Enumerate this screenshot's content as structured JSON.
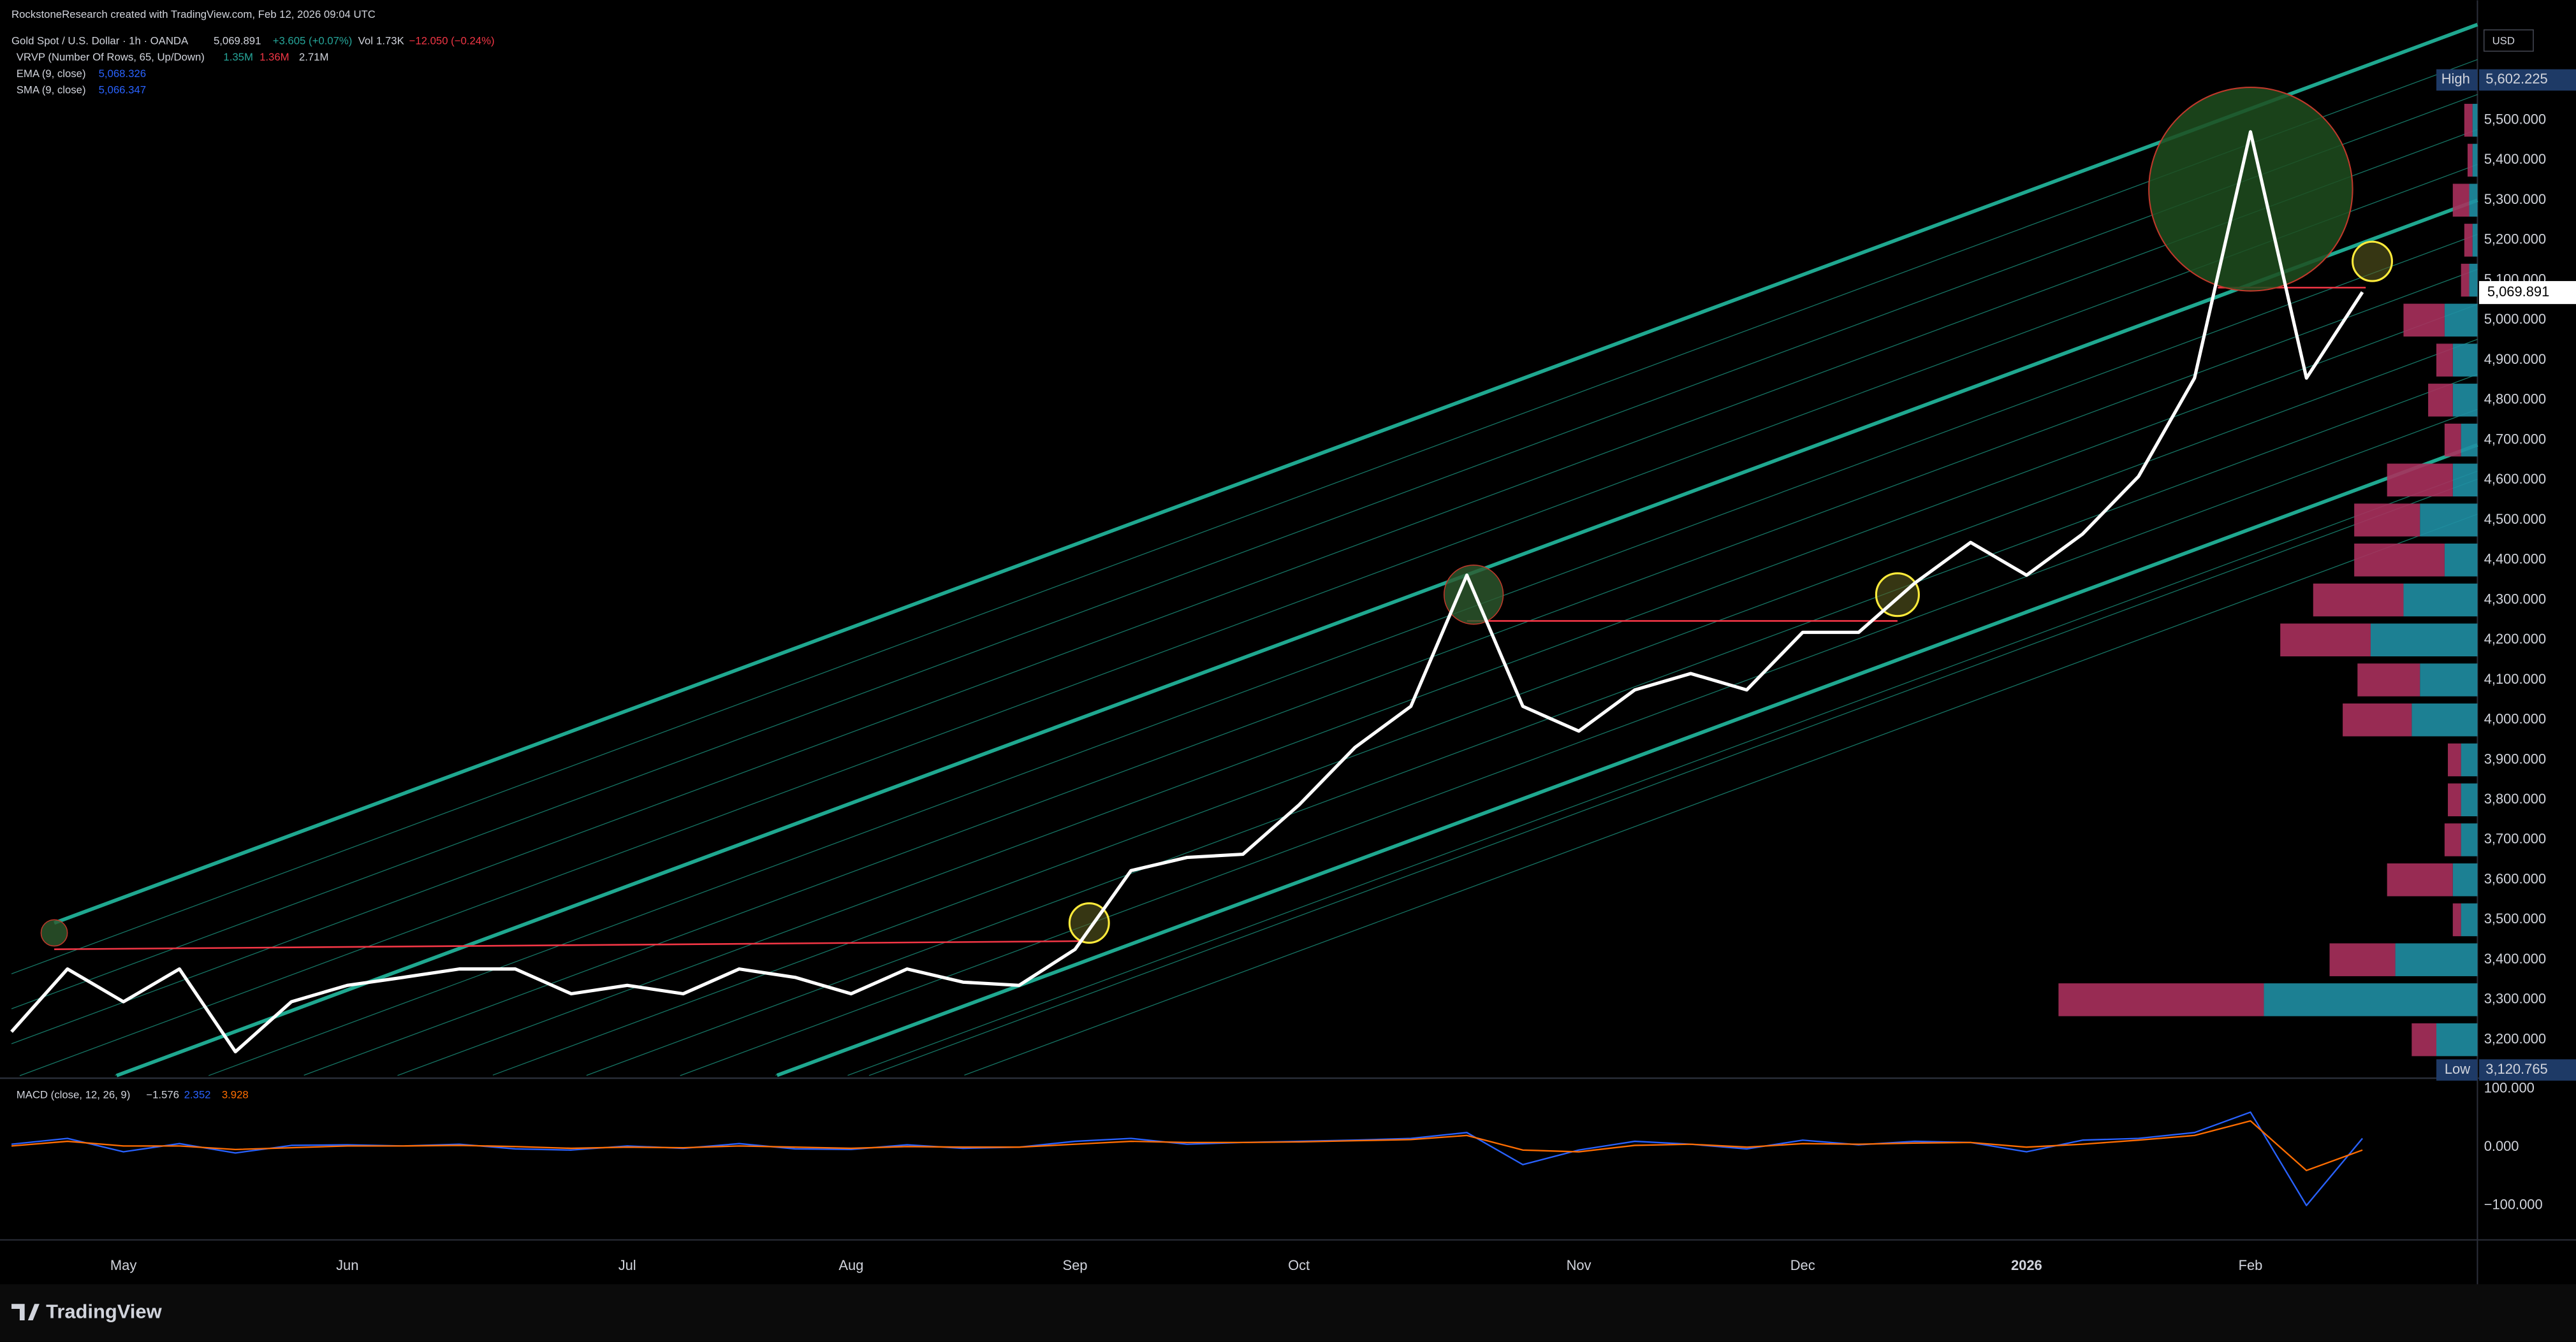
{
  "header": {
    "attribution": "RockstoneResearch created with TradingView.com, Feb 12, 2026 09:04 UTC",
    "symbol": "Gold Spot / U.S. Dollar · 1h · OANDA",
    "last": "5,069.891",
    "change": "+3.605 (+0.07%)",
    "volume_label": "Vol",
    "volume": "1.73K",
    "change2": "−12.050 (−0.24%)",
    "indicators": [
      {
        "name": "VRVP (Number Of Rows, 65, Up/Down)",
        "values": [
          "1.35M",
          "1.36M",
          "2.71M"
        ]
      },
      {
        "name": "EMA (9, close)",
        "values": [
          "5,068.326"
        ]
      },
      {
        "name": "SMA (9, close)",
        "values": [
          "5,066.347"
        ]
      }
    ],
    "currency": "USD",
    "high_label": "High",
    "high": "5,602.225",
    "low_label": "Low",
    "low": "3,120.765",
    "price_tag": "5,069.891",
    "logo": "TradingView"
  },
  "chart_data": [
    {
      "type": "line",
      "color": "#ffffff",
      "categories": [
        null,
        null,
        "May",
        null,
        null,
        null,
        "Jun",
        null,
        null,
        null,
        null,
        "Jul",
        null,
        null,
        null,
        "Aug",
        null,
        null,
        null,
        "Sep",
        null,
        null,
        null,
        "Oct",
        null,
        null,
        null,
        null,
        "Nov",
        null,
        null,
        null,
        "Dec",
        null,
        null,
        null,
        "2026",
        null,
        null,
        null,
        "Feb",
        null,
        null
      ],
      "values": [
        3220,
        3377,
        3295,
        3377,
        3170,
        3295,
        3336,
        3356,
        3377,
        3377,
        3315,
        3336,
        3315,
        3377,
        3356,
        3315,
        3377,
        3344,
        3336,
        3426,
        3623,
        3656,
        3664,
        3787,
        3931,
        4034,
        4362,
        4034,
        3972,
        4075,
        4116,
        4075,
        4219,
        4219,
        4342,
        4444,
        4362,
        4465,
        4609,
        4855,
        5471,
        4855,
        5070
      ],
      "ylim": [
        3110,
        5800
      ],
      "yticks": [
        {
          "value": 3200,
          "label": "3,200.000"
        },
        {
          "value": 3300,
          "label": "3,300.000"
        },
        {
          "value": 3400,
          "label": "3,400.000"
        },
        {
          "value": 3500,
          "label": "3,500.000"
        },
        {
          "value": 3600,
          "label": "3,600.000"
        },
        {
          "value": 3700,
          "label": "3,700.000"
        },
        {
          "value": 3800,
          "label": "3,800.000"
        },
        {
          "value": 3900,
          "label": "3,900.000"
        },
        {
          "value": 4000,
          "label": "4,000.000"
        },
        {
          "value": 4100,
          "label": "4,100.000"
        },
        {
          "value": 4200,
          "label": "4,200.000"
        },
        {
          "value": 4300,
          "label": "4,300.000"
        },
        {
          "value": 4400,
          "label": "4,400.000"
        },
        {
          "value": 4500,
          "label": "4,500.000"
        },
        {
          "value": 4600,
          "label": "4,600.000"
        },
        {
          "value": 4700,
          "label": "4,700.000"
        },
        {
          "value": 4800,
          "label": "4,800.000"
        },
        {
          "value": 4900,
          "label": "4,900.000"
        },
        {
          "value": 5000,
          "label": "5,000.000"
        },
        {
          "value": 5100,
          "label": "5,100.000"
        },
        {
          "value": 5200,
          "label": "5,200.000"
        },
        {
          "value": 5300,
          "label": "5,300.000"
        },
        {
          "value": 5400,
          "label": "5,400.000"
        },
        {
          "value": 5500,
          "label": "5,500.000"
        }
      ],
      "grid": false
    },
    {
      "type": "volume-profile",
      "y": [
        3200,
        3300,
        3400,
        3500,
        3600,
        3700,
        3800,
        3900,
        4000,
        4100,
        4200,
        4300,
        4400,
        4500,
        4600,
        4700,
        4800,
        4900,
        5000,
        5100,
        5200,
        5300,
        5400,
        5500
      ],
      "ylim": [
        3110,
        5800
      ],
      "xlim": [
        0,
        260
      ],
      "series": [
        {
          "color": "#1f8ea3",
          "values": [
            25,
            130,
            50,
            10,
            15,
            10,
            10,
            10,
            40,
            35,
            65,
            45,
            20,
            35,
            15,
            10,
            15,
            15,
            20,
            5,
            3,
            5,
            3,
            3
          ]
        },
        {
          "color": "#a8305c",
          "values": [
            15,
            125,
            40,
            5,
            40,
            10,
            8,
            8,
            42,
            38,
            55,
            55,
            55,
            40,
            40,
            10,
            15,
            10,
            25,
            5,
            5,
            10,
            3,
            5
          ]
        }
      ]
    },
    {
      "type": "line",
      "title": "MACD (close, 12, 26, 9)",
      "legend_values": [
        "−1.576",
        "2.352",
        "3.928"
      ],
      "ylim": [
        -159,
        114
      ],
      "yticks": [
        {
          "value": 100,
          "label": "100.000"
        },
        {
          "value": 0,
          "label": "0.000"
        },
        {
          "value": -100,
          "label": "−100.000"
        }
      ],
      "series": [
        {
          "color": "#2962ff",
          "values": [
            5,
            15,
            -8,
            6,
            -10,
            3,
            4,
            2,
            5,
            -3,
            -5,
            2,
            -2,
            6,
            -3,
            -4,
            4,
            -2,
            0,
            10,
            15,
            5,
            8,
            10,
            12,
            15,
            25,
            -30,
            -5,
            10,
            5,
            -3,
            12,
            4,
            10,
            8,
            -8,
            12,
            15,
            25,
            60,
            -100,
            15
          ]
        },
        {
          "color": "#ff6d00",
          "values": [
            2,
            10,
            2,
            2,
            -4,
            -1,
            2,
            2,
            3,
            1,
            -2,
            0,
            -1,
            2,
            0,
            -2,
            1,
            0,
            0,
            5,
            10,
            8,
            8,
            9,
            11,
            13,
            20,
            -5,
            -8,
            3,
            5,
            0,
            6,
            5,
            7,
            8,
            0,
            5,
            12,
            20,
            45,
            -40,
            -5
          ]
        }
      ]
    }
  ]
}
